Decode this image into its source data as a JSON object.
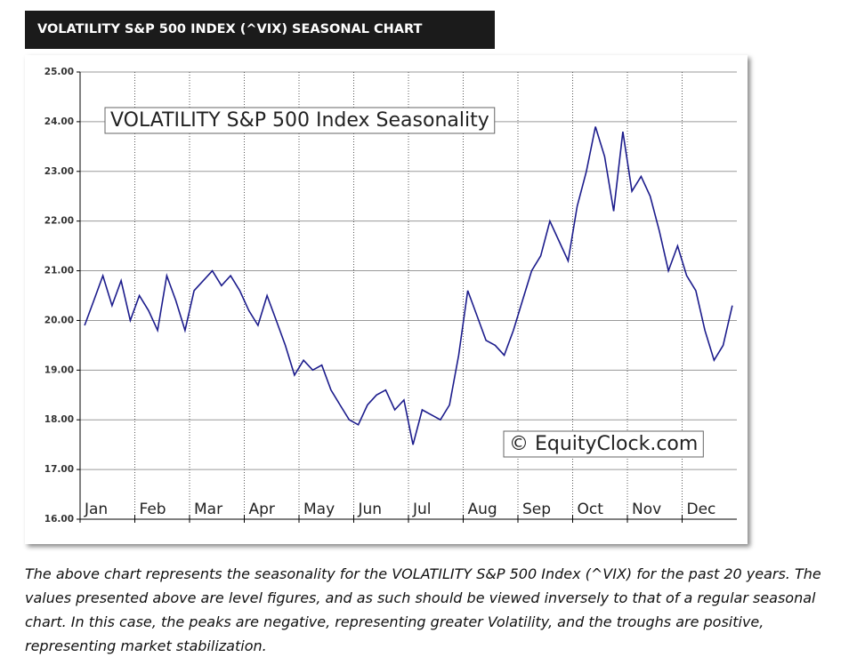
{
  "header": {
    "title": "VOLATILITY S&P 500 INDEX (^VIX) SEASONAL CHART"
  },
  "chart_data": {
    "type": "line",
    "annotation": "VOLATILITY S&P 500 Index Seasonality",
    "watermark": "© EquityClock.com",
    "categories": [
      "Jan",
      null,
      null,
      null,
      null,
      null,
      "Feb",
      null,
      null,
      null,
      null,
      null,
      "Mar",
      null,
      null,
      null,
      null,
      null,
      "Apr",
      null,
      null,
      null,
      null,
      null,
      "May",
      null,
      null,
      null,
      null,
      null,
      "Jun",
      null,
      null,
      null,
      null,
      null,
      "Jul",
      null,
      null,
      null,
      null,
      null,
      "Aug",
      null,
      null,
      null,
      null,
      null,
      "Sep",
      null,
      null,
      null,
      null,
      null,
      "Oct",
      null,
      null,
      null,
      null,
      null,
      "Nov",
      null,
      null,
      null,
      null,
      null,
      "Dec",
      null,
      null,
      null,
      null,
      null
    ],
    "series": [
      {
        "color": "#1c1c8c",
        "values": [
          19.9,
          20.4,
          20.9,
          20.3,
          20.8,
          20.0,
          20.5,
          20.2,
          19.8,
          20.9,
          20.4,
          19.8,
          20.6,
          20.8,
          21.0,
          20.7,
          20.9,
          20.6,
          20.2,
          19.9,
          20.5,
          20.0,
          19.5,
          18.9,
          19.2,
          19.0,
          19.1,
          18.6,
          18.3,
          18.0,
          17.9,
          18.3,
          18.5,
          18.6,
          18.2,
          18.4,
          17.5,
          18.2,
          18.1,
          18.0,
          18.3,
          19.3,
          20.6,
          20.1,
          19.6,
          19.5,
          19.3,
          19.8,
          20.4,
          21.0,
          21.3,
          22.0,
          21.6,
          21.2,
          22.3,
          23.0,
          23.9,
          23.3,
          22.2,
          23.8,
          22.6,
          22.9,
          22.5,
          21.8,
          21.0,
          21.5,
          20.9,
          20.6,
          19.8,
          19.2,
          19.5,
          20.3
        ]
      }
    ],
    "ylim": [
      16,
      25
    ],
    "yticks": [
      {
        "value": 16,
        "label": "16.00"
      },
      {
        "value": 17,
        "label": "17.00"
      },
      {
        "value": 18,
        "label": "18.00"
      },
      {
        "value": 19,
        "label": "19.00"
      },
      {
        "value": 20,
        "label": "20.00"
      },
      {
        "value": 21,
        "label": "21.00"
      },
      {
        "value": 22,
        "label": "22.00"
      },
      {
        "value": 23,
        "label": "23.00"
      },
      {
        "value": 24,
        "label": "24.00"
      },
      {
        "value": 25,
        "label": "25.00"
      }
    ],
    "grid": true
  },
  "caption": "The above chart represents the seasonality for the VOLATILITY S&P 500 Index (^VIX) for the past 20 years.   The values presented above are level figures, and as such should be viewed inversely to that of a regular seasonal chart.   In this case, the peaks are negative, representing greater Volatility, and the troughs are positive, representing market stabilization."
}
